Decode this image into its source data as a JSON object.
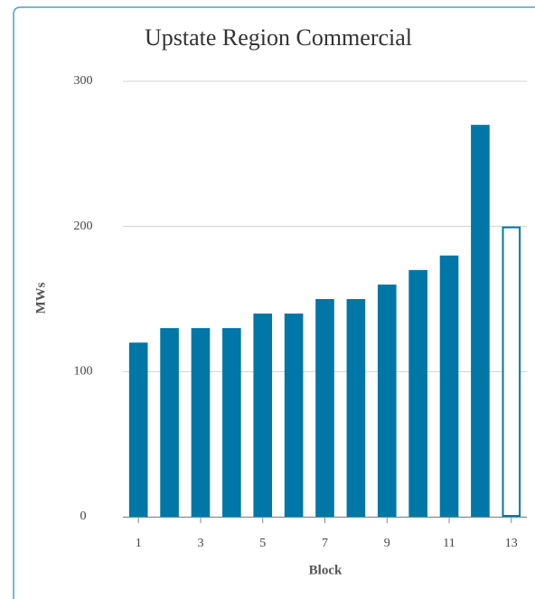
{
  "chart_data": {
    "type": "bar",
    "title": "Upstate Region Commercial",
    "x_label": "Block",
    "y_label": "MWs",
    "categories": [
      "1",
      null,
      "3",
      null,
      "5",
      null,
      "7",
      null,
      "9",
      null,
      "11",
      null,
      "13"
    ],
    "values": [
      120,
      130,
      130,
      130,
      140,
      140,
      150,
      150,
      160,
      170,
      180,
      270,
      200
    ],
    "color": "#0077a6",
    "fills": [
      "#0077a6",
      "#0077a6",
      "#0077a6",
      "#0077a6",
      "#0077a6",
      "#0077a6",
      "#0077a6",
      "#0077a6",
      "#0077a6",
      "#0077a6",
      "#0077a6",
      "#0077a6",
      "#ffffff"
    ],
    "ylim": [
      0,
      300
    ],
    "yticks": [
      0,
      100,
      200,
      300
    ],
    "grid": true
  }
}
